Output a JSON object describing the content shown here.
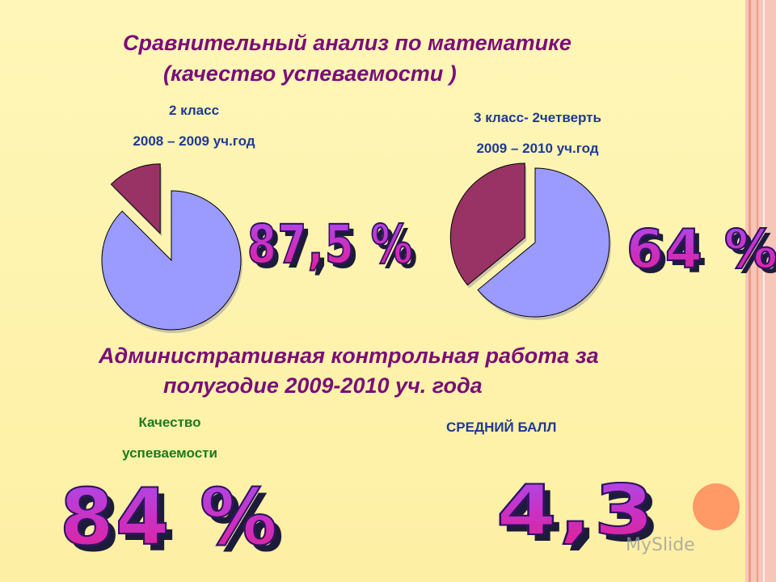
{
  "slide": {
    "title_line1": "Сравнительный анализ по математике",
    "title_line2": "(качество успеваемости )",
    "subtitle_line1": "Административная контрольная работа за",
    "subtitle_line2": "полугодие 2009-2010 уч. года",
    "left_chart_label1": "2 класс",
    "left_chart_label2": "2008 – 2009 уч.год",
    "left_value": "87,5 %",
    "right_chart_label1": "3 класс- 2четверть",
    "right_chart_label2": "2009 – 2010 уч.год",
    "right_value": "64 %",
    "quality_label1": "Качество",
    "quality_label2": "успеваемости",
    "quality_value": "84 %",
    "avg_label": "СРЕДНИЙ БАЛЛ",
    "avg_value": "4,3",
    "watermark": "MySlide",
    "colors": {
      "title": "#7a0d7a",
      "label_blue": "#1f3a93",
      "label_green": "#1d7a1d",
      "pie_main": "#9a9aff",
      "pie_exploded": "#993366",
      "accent_circle": "#ff9966"
    }
  },
  "chart_data": [
    {
      "type": "pie",
      "title": "2 класс 2008 – 2009 уч.год",
      "categories": [
        "",
        ""
      ],
      "values": [
        87.5,
        12.5
      ],
      "colors": [
        "#9a9aff",
        "#993366"
      ],
      "exploded": [
        false,
        true
      ]
    },
    {
      "type": "pie",
      "title": "3 класс- 2четверть 2009 – 2010 уч.год",
      "categories": [
        "",
        ""
      ],
      "values": [
        64,
        36
      ],
      "colors": [
        "#9a9aff",
        "#993366"
      ],
      "exploded": [
        false,
        true
      ]
    }
  ]
}
